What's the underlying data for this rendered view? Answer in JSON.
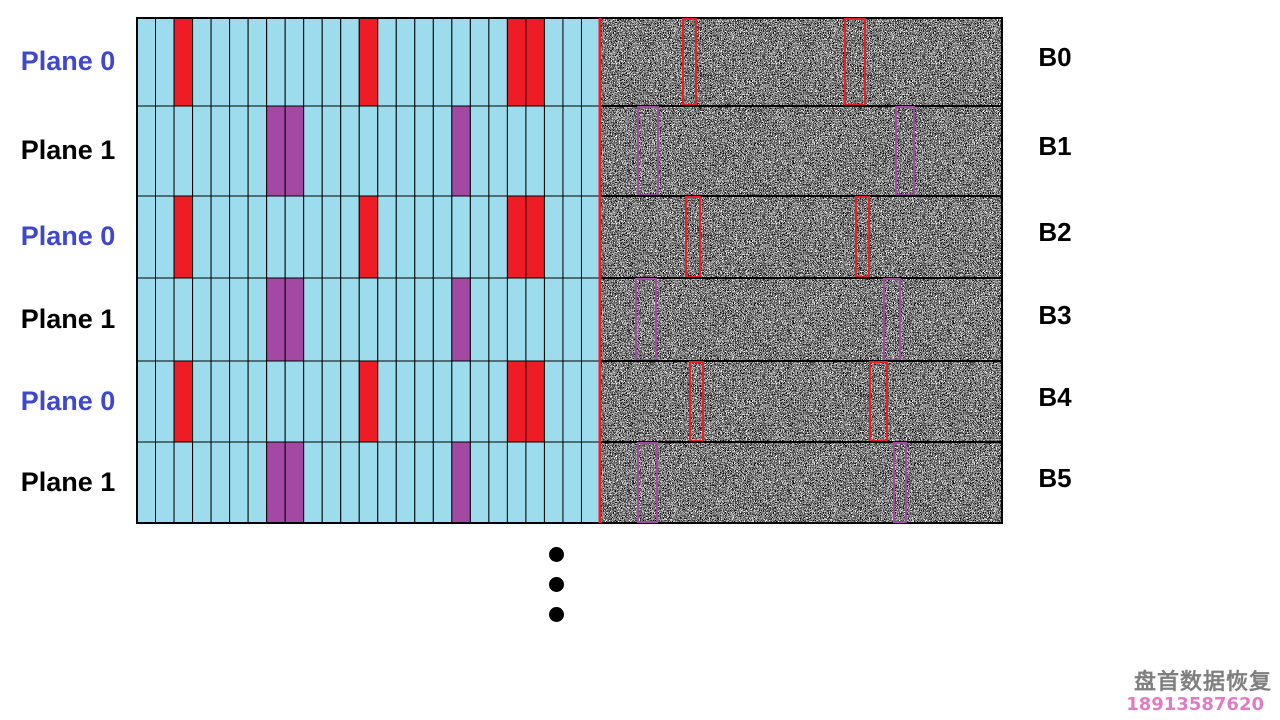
{
  "rows": [
    {
      "plane": "Plane 0",
      "block": "B0",
      "plane_index": 0
    },
    {
      "plane": "Plane 1",
      "block": "B1",
      "plane_index": 1
    },
    {
      "plane": "Plane 0",
      "block": "B2",
      "plane_index": 0
    },
    {
      "plane": "Plane 1",
      "block": "B3",
      "plane_index": 1
    },
    {
      "plane": "Plane 0",
      "block": "B4",
      "plane_index": 0
    },
    {
      "plane": "Plane 1",
      "block": "B5",
      "plane_index": 1
    }
  ],
  "columns_per_row": 25,
  "highlight_columns": {
    "plane_0": [
      2,
      12,
      20,
      21
    ],
    "plane_1": [
      7,
      8,
      17
    ]
  },
  "colors": {
    "cell_fill": "#9ddcec",
    "plane_0_highlight": "#ee1c24",
    "plane_1_highlight": "#a349a4",
    "plane_0_label": "#3f48cc",
    "plane_1_label": "#000000",
    "separator": "#ee1c24"
  },
  "watermark": {
    "company": "盘首数据恢复",
    "phone": "18913587620"
  }
}
